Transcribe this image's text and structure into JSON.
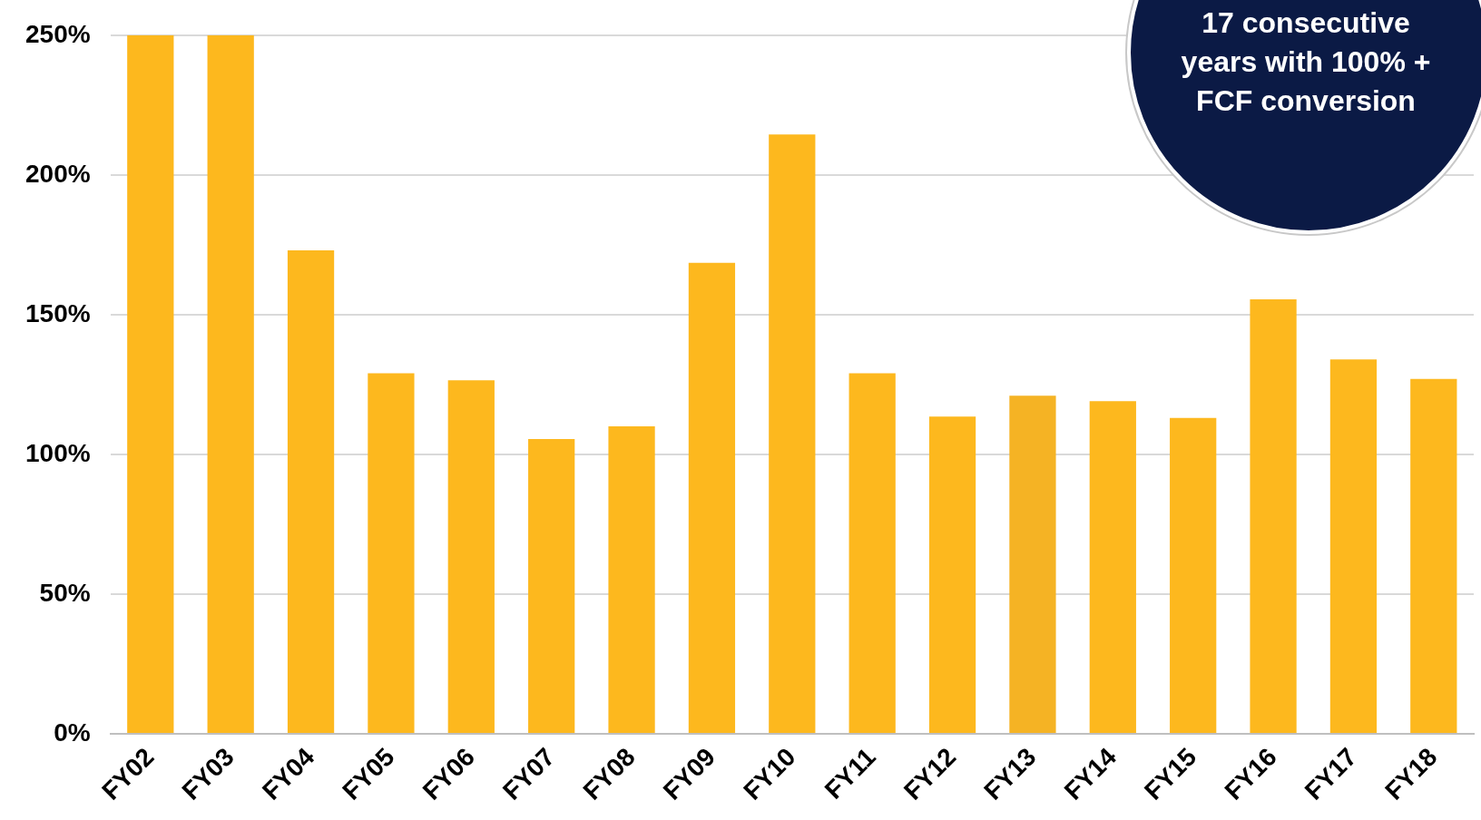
{
  "chart_data": {
    "type": "bar",
    "categories": [
      "FY02",
      "FY03",
      "FY04",
      "FY05",
      "FY06",
      "FY07",
      "FY08",
      "FY09",
      "FY10",
      "FY11",
      "FY12",
      "FY13",
      "FY14",
      "FY15",
      "FY16",
      "FY17",
      "FY18"
    ],
    "values": [
      250,
      250,
      173,
      129,
      126.5,
      105.5,
      110,
      168.5,
      214.5,
      129,
      113.5,
      121,
      119,
      113,
      155.5,
      134,
      127
    ],
    "colors": [
      "#fdb81e",
      "#fdb81e",
      "#fdb81e",
      "#fdb81e",
      "#fdb81e",
      "#fdb81e",
      "#fdb81e",
      "#fdb81e",
      "#fdb81e",
      "#fdb81e",
      "#fdb81e",
      "#f5b324",
      "#fdb81e",
      "#fdb81e",
      "#fdb81e",
      "#fdb81e",
      "#fdb81e"
    ],
    "ylim": [
      0,
      250
    ],
    "yticks": [
      {
        "value": 0,
        "label": "0%"
      },
      {
        "value": 50,
        "label": "50%"
      },
      {
        "value": 100,
        "label": "100%"
      },
      {
        "value": 150,
        "label": "150%"
      },
      {
        "value": 200,
        "label": "200%"
      },
      {
        "value": 250,
        "label": "250%"
      }
    ],
    "grid": "y",
    "legend": false,
    "annotations": [
      "17 consecutive years with 100% + FCF conversion"
    ]
  }
}
